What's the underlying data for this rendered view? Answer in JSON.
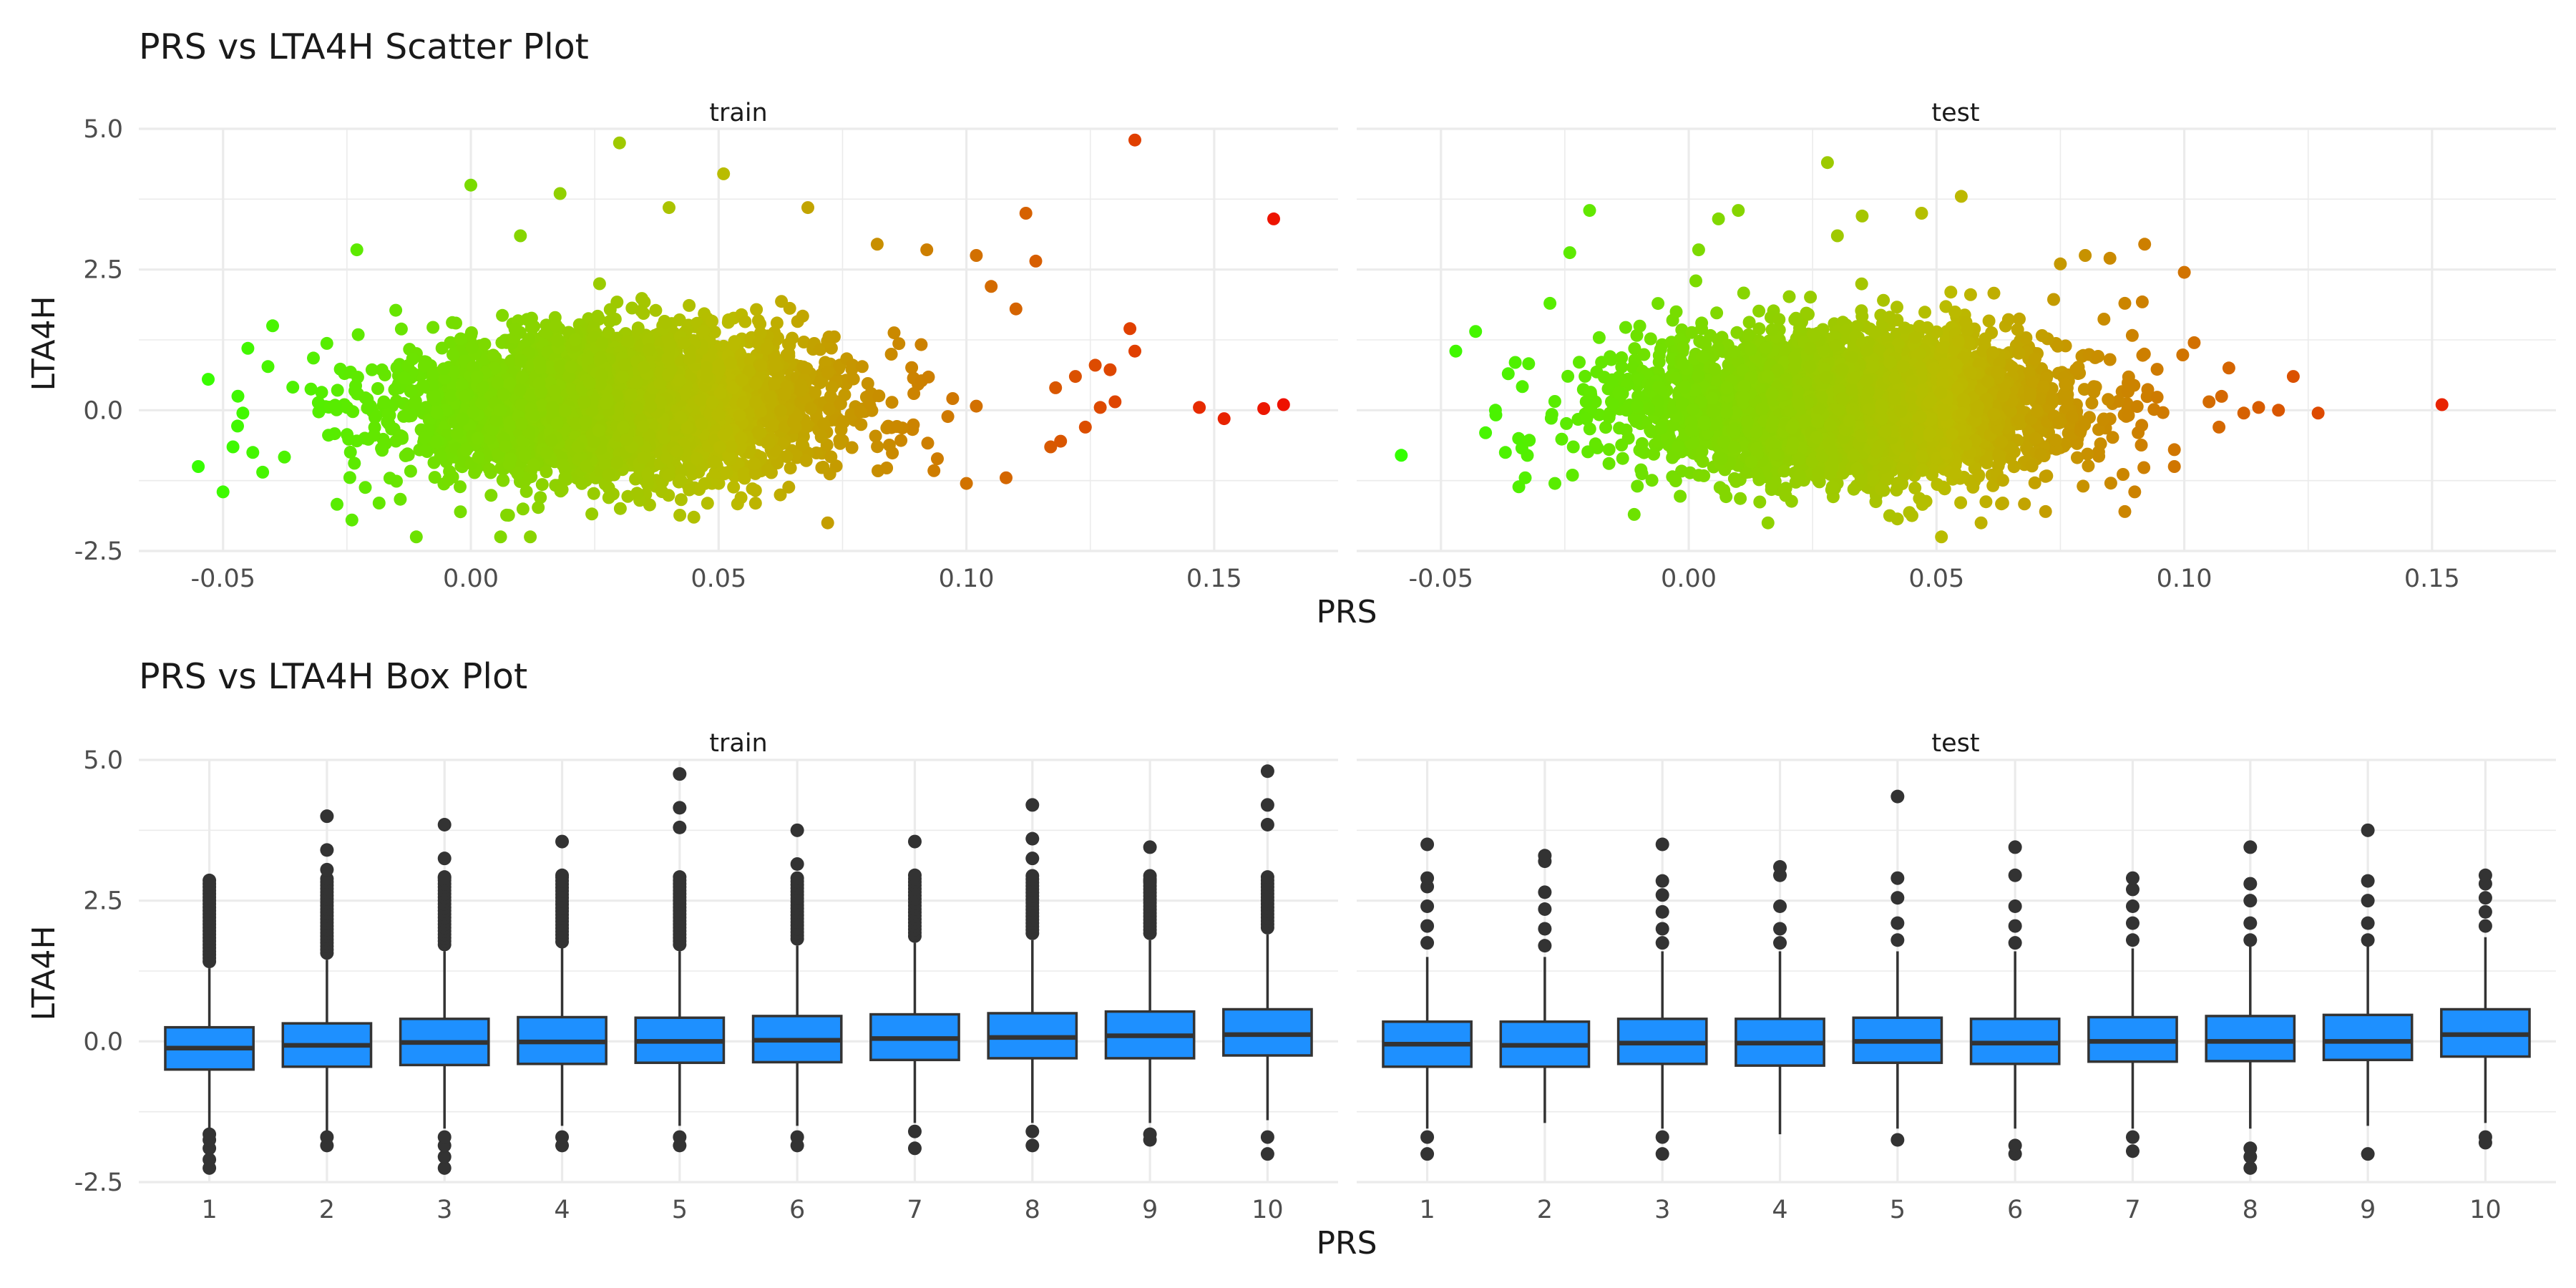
{
  "figure": {
    "scatter_title": "PRS vs LTA4H Scatter Plot",
    "box_title": "PRS vs LTA4H Box Plot",
    "scatter_xlabel": "PRS",
    "scatter_ylabel": "LTA4H",
    "box_xlabel": "PRS",
    "box_ylabel": "LTA4H",
    "panels": [
      "train",
      "test"
    ]
  },
  "colors": {
    "low": "#33ff00",
    "mid": "#bbbb00",
    "high": "#ee1100",
    "box_fill": "#1e90ff",
    "box_line": "#333333",
    "grid": "#ebebeb"
  },
  "chart_data": [
    {
      "type": "scatter",
      "title": "PRS vs LTA4H Scatter Plot",
      "xlabel": "PRS",
      "ylabel": "LTA4H",
      "xlim": [
        -0.067,
        0.175
      ],
      "ylim": [
        -2.5,
        5.0
      ],
      "xticks": [
        -0.05,
        0.0,
        0.05,
        0.1,
        0.15
      ],
      "xtick_labels": [
        "-0.05",
        "0.00",
        "0.05",
        "0.10",
        "0.15"
      ],
      "yticks": [
        -2.5,
        0.0,
        2.5,
        5.0
      ],
      "ytick_labels": [
        "-2.5",
        "0.0",
        "2.5",
        "5.0"
      ],
      "grid": true,
      "color_by": "PRS",
      "facets": [
        {
          "name": "train",
          "points": [
            [
              0.134,
              4.8
            ],
            [
              0.162,
              3.4
            ],
            [
              0.164,
              0.1
            ],
            [
              0.16,
              0.03
            ],
            [
              0.152,
              -0.15
            ],
            [
              0.147,
              0.05
            ],
            [
              0.133,
              1.45
            ],
            [
              0.134,
              1.05
            ],
            [
              0.129,
              0.72
            ],
            [
              0.127,
              0.05
            ],
            [
              0.13,
              0.15
            ],
            [
              0.124,
              -0.3
            ],
            [
              0.119,
              -0.55
            ],
            [
              0.117,
              -0.65
            ],
            [
              0.112,
              3.5
            ],
            [
              0.114,
              2.65
            ],
            [
              0.118,
              0.4
            ],
            [
              0.122,
              0.6
            ],
            [
              0.126,
              0.8
            ],
            [
              0.11,
              1.8
            ],
            [
              0.108,
              -1.2
            ],
            [
              0.105,
              2.2
            ],
            [
              0.102,
              2.75
            ],
            [
              0.1,
              -1.3
            ],
            [
              -0.055,
              -1.0
            ],
            [
              -0.05,
              -1.45
            ],
            [
              -0.053,
              0.55
            ],
            [
              -0.048,
              -0.65
            ],
            [
              -0.046,
              -0.05
            ],
            [
              -0.044,
              -0.75
            ],
            [
              -0.047,
              0.25
            ],
            [
              -0.045,
              1.1
            ],
            [
              -0.042,
              -1.1
            ],
            [
              -0.04,
              1.5
            ],
            [
              0.03,
              4.75
            ],
            [
              0.0,
              4.0
            ],
            [
              0.051,
              4.2
            ],
            [
              0.04,
              3.6
            ],
            [
              0.068,
              3.6
            ],
            [
              0.018,
              3.85
            ],
            [
              0.01,
              3.1
            ],
            [
              -0.023,
              2.85
            ],
            [
              0.092,
              2.85
            ],
            [
              0.082,
              2.95
            ],
            [
              0.006,
              -2.25
            ],
            [
              -0.011,
              -2.25
            ],
            [
              0.012,
              -2.25
            ],
            [
              0.072,
              -2.0
            ],
            [
              -0.024,
              -1.95
            ],
            [
              0.045,
              -1.9
            ]
          ],
          "dense_cloud": {
            "x_mean": 0.03,
            "x_sd": 0.021,
            "y_mean": 0.1,
            "y_sd": 0.7
          }
        },
        {
          "name": "test",
          "points": [
            [
              0.152,
              0.1
            ],
            [
              0.127,
              -0.05
            ],
            [
              0.122,
              0.6
            ],
            [
              0.119,
              0.0
            ],
            [
              0.115,
              0.05
            ],
            [
              0.112,
              -0.05
            ],
            [
              0.109,
              0.75
            ],
            [
              0.107,
              -0.3
            ],
            [
              0.105,
              0.15
            ],
            [
              0.102,
              1.2
            ],
            [
              0.1,
              2.45
            ],
            [
              0.098,
              -0.7
            ],
            [
              0.092,
              2.95
            ],
            [
              0.088,
              1.9
            ],
            [
              0.085,
              2.7
            ],
            [
              0.08,
              2.75
            ],
            [
              0.075,
              2.6
            ],
            [
              0.098,
              -1.0
            ],
            [
              0.09,
              -1.45
            ],
            [
              0.088,
              -1.8
            ],
            [
              0.085,
              0.9
            ],
            [
              -0.058,
              -0.8
            ],
            [
              -0.047,
              1.05
            ],
            [
              -0.043,
              1.4
            ],
            [
              -0.039,
              0.0
            ],
            [
              -0.041,
              -0.4
            ],
            [
              -0.037,
              -0.75
            ],
            [
              -0.035,
              0.85
            ],
            [
              -0.033,
              -1.2
            ],
            [
              -0.02,
              3.55
            ],
            [
              0.028,
              4.4
            ],
            [
              0.055,
              3.8
            ],
            [
              0.035,
              3.45
            ],
            [
              0.047,
              3.5
            ],
            [
              0.03,
              3.1
            ],
            [
              0.01,
              3.55
            ],
            [
              0.006,
              3.4
            ],
            [
              0.059,
              -2.0
            ],
            [
              0.051,
              -2.25
            ],
            [
              0.016,
              -2.0
            ],
            [
              -0.011,
              -1.85
            ],
            [
              0.072,
              -1.8
            ],
            [
              -0.027,
              -1.3
            ],
            [
              -0.028,
              1.9
            ],
            [
              -0.024,
              2.8
            ],
            [
              0.002,
              2.85
            ]
          ],
          "dense_cloud": {
            "x_mean": 0.033,
            "x_sd": 0.021,
            "y_mean": 0.1,
            "y_sd": 0.7
          }
        }
      ]
    },
    {
      "type": "box",
      "title": "PRS vs LTA4H Box Plot",
      "xlabel": "PRS",
      "ylabel": "LTA4H",
      "categories": [
        "1",
        "2",
        "3",
        "4",
        "5",
        "6",
        "7",
        "8",
        "9",
        "10"
      ],
      "ylim": [
        -2.5,
        5.0
      ],
      "yticks": [
        -2.5,
        0.0,
        2.5,
        5.0
      ],
      "ytick_labels": [
        "-2.5",
        "0.0",
        "2.5",
        "5.0"
      ],
      "grid": true,
      "facets": [
        {
          "name": "train",
          "boxes": [
            {
              "q1": -0.5,
              "median": -0.12,
              "q3": 0.25,
              "wlo": -1.6,
              "whi": 1.3,
              "outliers_low": [
                -2.25,
                -2.1,
                -1.9,
                -1.75,
                -1.65
              ],
              "outliers_high_max": 2.9
            },
            {
              "q1": -0.45,
              "median": -0.07,
              "q3": 0.32,
              "wlo": -1.6,
              "whi": 1.45,
              "outliers_low": [
                -1.85,
                -1.7
              ],
              "outliers_high_max": 4.0
            },
            {
              "q1": -0.42,
              "median": -0.02,
              "q3": 0.4,
              "wlo": -1.55,
              "whi": 1.6,
              "outliers_low": [
                -2.25,
                -2.05,
                -1.85,
                -1.7
              ],
              "outliers_high_max": 3.85
            },
            {
              "q1": -0.4,
              "median": -0.01,
              "q3": 0.43,
              "wlo": -1.5,
              "whi": 1.65,
              "outliers_low": [
                -1.85,
                -1.7
              ],
              "outliers_high_max": 3.55
            },
            {
              "q1": -0.38,
              "median": 0.0,
              "q3": 0.42,
              "wlo": -1.5,
              "whi": 1.6,
              "outliers_low": [
                -1.85,
                -1.7
              ],
              "outliers_high_max": 4.75
            },
            {
              "q1": -0.37,
              "median": 0.02,
              "q3": 0.45,
              "wlo": -1.5,
              "whi": 1.7,
              "outliers_low": [
                -1.85,
                -1.7
              ],
              "outliers_high_max": 3.75
            },
            {
              "q1": -0.33,
              "median": 0.05,
              "q3": 0.48,
              "wlo": -1.45,
              "whi": 1.75,
              "outliers_low": [
                -1.9,
                -1.6
              ],
              "outliers_high_max": 3.55
            },
            {
              "q1": -0.3,
              "median": 0.07,
              "q3": 0.5,
              "wlo": -1.45,
              "whi": 1.8,
              "outliers_low": [
                -1.85,
                -1.6
              ],
              "outliers_high_max": 4.2
            },
            {
              "q1": -0.3,
              "median": 0.1,
              "q3": 0.53,
              "wlo": -1.45,
              "whi": 1.8,
              "outliers_low": [
                -1.75,
                -1.65
              ],
              "outliers_high_max": 3.45
            },
            {
              "q1": -0.25,
              "median": 0.12,
              "q3": 0.57,
              "wlo": -1.4,
              "whi": 1.9,
              "outliers_low": [
                -2.0,
                -1.7
              ],
              "outliers_high_max": 4.8
            }
          ]
        },
        {
          "name": "test",
          "boxes": [
            {
              "q1": -0.45,
              "median": -0.05,
              "q3": 0.35,
              "wlo": -1.55,
              "whi": 1.5,
              "outliers_low": [
                -2.0,
                -1.7
              ],
              "outliers_high": [
                1.75,
                2.05,
                2.4,
                2.75,
                2.9,
                3.5
              ]
            },
            {
              "q1": -0.45,
              "median": -0.07,
              "q3": 0.35,
              "wlo": -1.45,
              "whi": 1.5,
              "outliers_low": [],
              "outliers_high": [
                1.7,
                2.0,
                2.35,
                2.65,
                3.2,
                3.3
              ]
            },
            {
              "q1": -0.4,
              "median": -0.03,
              "q3": 0.4,
              "wlo": -1.55,
              "whi": 1.6,
              "outliers_low": [
                -2.0,
                -1.7
              ],
              "outliers_high": [
                1.75,
                2.0,
                2.3,
                2.6,
                2.85,
                3.5
              ]
            },
            {
              "q1": -0.43,
              "median": -0.03,
              "q3": 0.4,
              "wlo": -1.65,
              "whi": 1.6,
              "outliers_low": [],
              "outliers_high": [
                1.75,
                2.0,
                2.4,
                2.95,
                3.1
              ]
            },
            {
              "q1": -0.38,
              "median": 0.0,
              "q3": 0.42,
              "wlo": -1.55,
              "whi": 1.6,
              "outliers_low": [
                -1.75
              ],
              "outliers_high": [
                1.8,
                2.1,
                2.55,
                2.9,
                4.35
              ]
            },
            {
              "q1": -0.4,
              "median": -0.03,
              "q3": 0.4,
              "wlo": -1.55,
              "whi": 1.6,
              "outliers_low": [
                -2.0,
                -1.85
              ],
              "outliers_high": [
                1.75,
                2.05,
                2.4,
                2.95,
                3.45
              ]
            },
            {
              "q1": -0.36,
              "median": 0.0,
              "q3": 0.43,
              "wlo": -1.55,
              "whi": 1.65,
              "outliers_low": [
                -1.95,
                -1.7
              ],
              "outliers_high": [
                1.8,
                2.1,
                2.4,
                2.7,
                2.9
              ]
            },
            {
              "q1": -0.35,
              "median": 0.0,
              "q3": 0.45,
              "wlo": -1.55,
              "whi": 1.7,
              "outliers_low": [
                -2.25,
                -2.05,
                -1.9
              ],
              "outliers_high": [
                1.8,
                2.1,
                2.5,
                2.8,
                3.45
              ]
            },
            {
              "q1": -0.33,
              "median": 0.0,
              "q3": 0.47,
              "wlo": -1.5,
              "whi": 1.7,
              "outliers_low": [
                -2.0
              ],
              "outliers_high": [
                1.8,
                2.1,
                2.5,
                2.85,
                3.75
              ]
            },
            {
              "q1": -0.27,
              "median": 0.12,
              "q3": 0.57,
              "wlo": -1.45,
              "whi": 1.85,
              "outliers_low": [
                -1.8,
                -1.7
              ],
              "outliers_high": [
                2.05,
                2.3,
                2.55,
                2.8,
                2.95
              ]
            }
          ]
        }
      ]
    }
  ]
}
